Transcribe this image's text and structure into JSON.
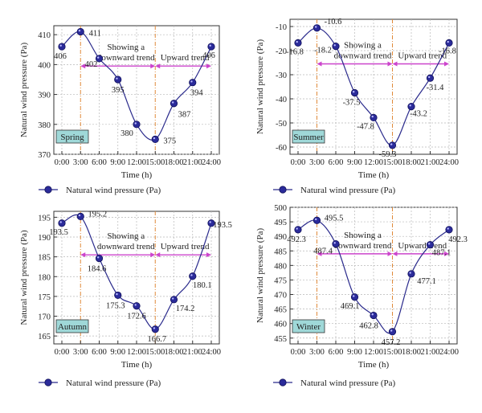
{
  "theme": {
    "series_color": "#2a2a8c",
    "marker_fill": "#2b2b9a",
    "line_color": "#2a2a8c",
    "trend_arrow_color": "#cc44cc",
    "divider_color": "#e08a3a",
    "grid_color": "#b8b8b8",
    "season_box_fill": "#9fd8d8"
  },
  "chart_data": [
    {
      "type": "line",
      "season": "Spring",
      "ylabel": "Natural wind pressure (Pa)",
      "xlabel": "Time (h)",
      "categories": [
        "0:00",
        "3:00",
        "6:00",
        "9:00",
        "12:00",
        "15:00",
        "18:00",
        "21:00",
        "24:00"
      ],
      "series": [
        {
          "name": "Natural wind pressure (Pa)",
          "values": [
            406,
            411,
            402,
            395,
            380,
            375,
            387,
            394,
            406
          ]
        }
      ],
      "data_labels": [
        "406",
        "411",
        "402",
        "395",
        "380",
        "375",
        "387",
        "394",
        "406"
      ],
      "yticks": [
        370,
        380,
        390,
        400,
        410
      ],
      "ylim": [
        370,
        413
      ],
      "grid": true,
      "legend": "below",
      "arrow_y": 399.5,
      "annotations": {
        "downward": [
          "Showing a",
          "downward trend"
        ],
        "upward": "Upward trend"
      }
    },
    {
      "type": "line",
      "season": "Summer",
      "ylabel": "Natural wind pressure (Pa)",
      "xlabel": "Time (h)",
      "categories": [
        "0:00",
        "3:00",
        "6:00",
        "9:00",
        "12:00",
        "15:00",
        "18:00",
        "21:00",
        "24:00"
      ],
      "series": [
        {
          "name": "Natural wind pressure (Pa)",
          "values": [
            -16.8,
            -10.6,
            -18.2,
            -37.5,
            -47.8,
            -59.3,
            -43.2,
            -31.4,
            -16.8
          ]
        }
      ],
      "data_labels": [
        "-16.8",
        "-10.6",
        "-18.2",
        "-37.5",
        "-47.8",
        "-59.3",
        "-43.2",
        "-31.4",
        "-16.8"
      ],
      "yticks": [
        -60,
        -50,
        -40,
        -30,
        -20,
        -10
      ],
      "ylim": [
        -63,
        -7
      ],
      "grid": true,
      "legend": "below",
      "arrow_y": -25.5,
      "annotations": {
        "downward": [
          "Showing a",
          "downward trend"
        ],
        "upward": "Upward trend"
      }
    },
    {
      "type": "line",
      "season": "Autumn",
      "ylabel": "Natural wind pressure (Pa)",
      "xlabel": "Time (h)",
      "categories": [
        "0:00",
        "3:00",
        "6:00",
        "9:00",
        "12:00",
        "15:00",
        "18:00",
        "21:00",
        "24:00"
      ],
      "series": [
        {
          "name": "Natural wind pressure (Pa)",
          "values": [
            193.5,
            195.2,
            184.6,
            175.3,
            172.6,
            166.7,
            174.2,
            180.1,
            193.5
          ]
        }
      ],
      "data_labels": [
        "193.5",
        "195.2",
        "184.6",
        "175.3",
        "172.6",
        "166.7",
        "174.2",
        "180.1",
        "193.5"
      ],
      "yticks": [
        165,
        170,
        175,
        180,
        185,
        190,
        195
      ],
      "ylim": [
        163,
        196.5
      ],
      "grid": true,
      "legend": "below",
      "arrow_y": 185.5,
      "annotations": {
        "downward": [
          "Showing a",
          "downward trend"
        ],
        "upward": "Upward trend"
      }
    },
    {
      "type": "line",
      "season": "Winter",
      "ylabel": "Natural wind pressure (Pa)",
      "xlabel": "Time (h)",
      "categories": [
        "0:00",
        "3:00",
        "6:00",
        "9:00",
        "12:00",
        "15:00",
        "18:00",
        "21:00",
        "24:00"
      ],
      "series": [
        {
          "name": "Natural wind pressure (Pa)",
          "values": [
            492.3,
            495.5,
            487.4,
            469.1,
            462.8,
            457.2,
            477.1,
            487.1,
            492.3
          ]
        }
      ],
      "data_labels": [
        "492.3",
        "495.5",
        "487.4",
        "469.1",
        "462.8",
        "457.2",
        "477.1",
        "487.1",
        "492.3"
      ],
      "yticks": [
        455,
        460,
        465,
        470,
        475,
        480,
        485,
        490,
        495,
        500
      ],
      "ylim": [
        453,
        500
      ],
      "grid": true,
      "legend": "below",
      "arrow_y": 484,
      "annotations": {
        "downward": [
          "Showing a",
          "downward trend"
        ],
        "upward": "Upward trend"
      }
    }
  ]
}
